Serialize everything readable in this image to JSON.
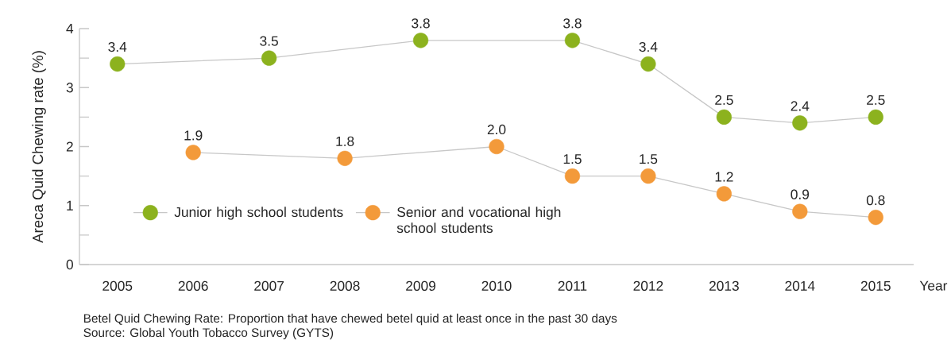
{
  "chart_data": {
    "type": "line",
    "categories": [
      "2005",
      "2006",
      "2007",
      "2008",
      "2009",
      "2010",
      "2011",
      "2012",
      "2013",
      "2014",
      "2015"
    ],
    "series": [
      {
        "name": "Junior high school students",
        "color": "#8cb21e",
        "values": [
          3.4,
          null,
          3.5,
          null,
          3.8,
          null,
          3.8,
          3.4,
          2.5,
          2.4,
          2.5
        ],
        "value_labels": [
          "3.4",
          null,
          "3.5",
          null,
          "3.8",
          null,
          "3.8",
          "3.4",
          "2.5",
          "2.4",
          "2.5"
        ]
      },
      {
        "name": "Senior and vocational high school students",
        "color": "#f39a3a",
        "values": [
          null,
          1.9,
          null,
          1.8,
          null,
          2.0,
          1.5,
          1.5,
          1.2,
          0.9,
          0.8
        ],
        "value_labels": [
          null,
          "1.9",
          null,
          "1.8",
          null,
          "2.0",
          "1.5",
          "1.5",
          "1.2",
          "0.9",
          "0.8"
        ]
      }
    ],
    "xlabel": "Year",
    "ylabel": "Areca Quid Chewing rate (%)",
    "ylim": [
      0,
      4
    ],
    "yticks": [
      0,
      {
        "value": 0.5,
        "label": null
      },
      1,
      {
        "value": 1.5,
        "label": null
      },
      2,
      {
        "value": 2.5,
        "label": null
      },
      3,
      {
        "value": 3.5,
        "label": null
      },
      4
    ],
    "marker": "circle",
    "grid": false,
    "legend": "bottom left",
    "annotations": [
      "Betel Quid Chewing Rate: Proportion that have chewed betel quid at least once in the past 30 days",
      "Source: Global Youth Tobacco Survey (GYTS)"
    ]
  }
}
